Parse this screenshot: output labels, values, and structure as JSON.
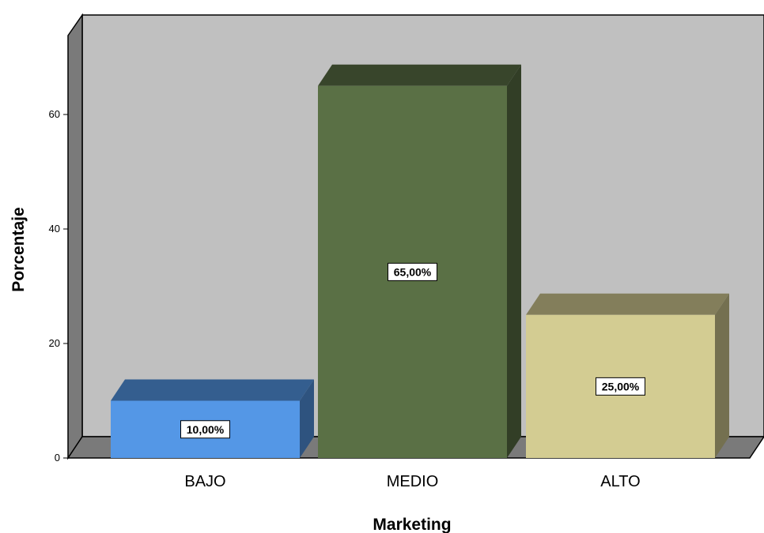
{
  "chart_data": {
    "type": "bar",
    "categories": [
      "BAJO",
      "MEDIO",
      "ALTO"
    ],
    "values": [
      10,
      65,
      25
    ],
    "data_labels": [
      "10,00%",
      "65,00%",
      "25,00%"
    ],
    "colors": [
      "#5497e6",
      "#5a7045",
      "#d3cc92"
    ],
    "xlabel": "Marketing",
    "ylabel": "Porcentaje",
    "yticks": [
      "0",
      "20",
      "40",
      "60"
    ],
    "ylim": [
      0,
      75
    ],
    "style": "3d",
    "background_color": "#c0c0c0",
    "grid": false
  }
}
